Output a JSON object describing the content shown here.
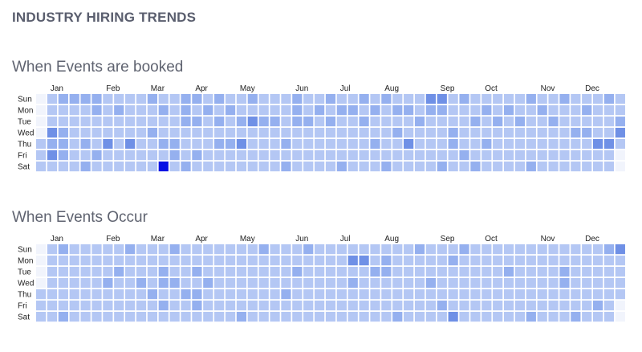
{
  "page": {
    "title": "INDUSTRY HIRING TRENDS"
  },
  "colors": {
    "empty": "#f1f4fc",
    "l0": "#b4c7f4",
    "l1": "#95b0ef",
    "l2": "#6f90e6",
    "max": "#0712e4"
  },
  "chart_data": [
    {
      "type": "heatmap",
      "title": "When Events are booked",
      "months": [
        "Jan",
        "Feb",
        "Mar",
        "Apr",
        "May",
        "Jun",
        "Jul",
        "Aug",
        "Sep",
        "Oct",
        "Nov",
        "Dec"
      ],
      "month_start_week": [
        1,
        6,
        10,
        14,
        18,
        23,
        27,
        31,
        36,
        40,
        45,
        49
      ],
      "days": [
        "Sun",
        "Mon",
        "Tue",
        "Wed",
        "Thu",
        "Fri",
        "Sat"
      ],
      "weeks": 53,
      "empty_cells": [
        [
          0,
          0
        ],
        [
          0,
          1
        ],
        [
          0,
          2
        ],
        [
          0,
          3
        ],
        [
          52,
          5
        ],
        [
          52,
          6
        ]
      ],
      "levels": [
        [
          1,
          3,
          1
        ],
        [
          1,
          4,
          1
        ],
        [
          2,
          0,
          1
        ],
        [
          2,
          3,
          1
        ],
        [
          2,
          4,
          1
        ],
        [
          2,
          5,
          1
        ],
        [
          3,
          0,
          1
        ],
        [
          4,
          0,
          1
        ],
        [
          4,
          4,
          1
        ],
        [
          4,
          6,
          1
        ],
        [
          5,
          0,
          1
        ],
        [
          5,
          1,
          1
        ],
        [
          5,
          5,
          1
        ],
        [
          6,
          4,
          1
        ],
        [
          7,
          1,
          1
        ],
        [
          8,
          4,
          1
        ],
        [
          10,
          0,
          1
        ],
        [
          10,
          3,
          1
        ],
        [
          11,
          1,
          1
        ],
        [
          11,
          4,
          1
        ],
        [
          12,
          4,
          1
        ],
        [
          12,
          5,
          1
        ],
        [
          13,
          0,
          1
        ],
        [
          13,
          1,
          1
        ],
        [
          13,
          2,
          1
        ],
        [
          13,
          6,
          1
        ],
        [
          14,
          0,
          1
        ],
        [
          14,
          2,
          1
        ],
        [
          14,
          5,
          1
        ],
        [
          15,
          1,
          1
        ],
        [
          16,
          0,
          1
        ],
        [
          16,
          2,
          1
        ],
        [
          16,
          4,
          1
        ],
        [
          17,
          1,
          1
        ],
        [
          17,
          4,
          1
        ],
        [
          18,
          2,
          1
        ],
        [
          19,
          0,
          1
        ],
        [
          20,
          2,
          1
        ],
        [
          21,
          2,
          1
        ],
        [
          22,
          4,
          1
        ],
        [
          22,
          6,
          1
        ],
        [
          23,
          0,
          1
        ],
        [
          23,
          1,
          1
        ],
        [
          23,
          2,
          1
        ],
        [
          24,
          2,
          1
        ],
        [
          25,
          1,
          1
        ],
        [
          26,
          0,
          1
        ],
        [
          26,
          2,
          1
        ],
        [
          27,
          1,
          1
        ],
        [
          27,
          6,
          1
        ],
        [
          28,
          1,
          1
        ],
        [
          29,
          0,
          1
        ],
        [
          29,
          2,
          1
        ],
        [
          30,
          1,
          1
        ],
        [
          30,
          4,
          1
        ],
        [
          31,
          0,
          1
        ],
        [
          31,
          6,
          1
        ],
        [
          32,
          1,
          1
        ],
        [
          32,
          3,
          1
        ],
        [
          33,
          1,
          1
        ],
        [
          34,
          2,
          1
        ],
        [
          35,
          0,
          1
        ],
        [
          35,
          1,
          1
        ],
        [
          36,
          1,
          1
        ],
        [
          36,
          6,
          1
        ],
        [
          37,
          3,
          1
        ],
        [
          37,
          4,
          1
        ],
        [
          38,
          0,
          1
        ],
        [
          38,
          5,
          1
        ],
        [
          39,
          2,
          1
        ],
        [
          39,
          6,
          1
        ],
        [
          40,
          1,
          1
        ],
        [
          40,
          4,
          1
        ],
        [
          41,
          2,
          1
        ],
        [
          42,
          1,
          1
        ],
        [
          43,
          2,
          1
        ],
        [
          44,
          0,
          1
        ],
        [
          44,
          6,
          1
        ],
        [
          45,
          1,
          1
        ],
        [
          46,
          2,
          1
        ],
        [
          47,
          0,
          1
        ],
        [
          48,
          3,
          1
        ],
        [
          49,
          1,
          1
        ],
        [
          49,
          3,
          1
        ],
        [
          50,
          4,
          1
        ],
        [
          51,
          0,
          1
        ],
        [
          52,
          2,
          1
        ],
        [
          52,
          3,
          1
        ],
        [
          1,
          3,
          2
        ],
        [
          1,
          5,
          2
        ],
        [
          6,
          4,
          2
        ],
        [
          8,
          4,
          2
        ],
        [
          18,
          4,
          2
        ],
        [
          19,
          2,
          2
        ],
        [
          33,
          4,
          2
        ],
        [
          35,
          0,
          2
        ],
        [
          36,
          0,
          2
        ],
        [
          50,
          4,
          2
        ],
        [
          51,
          4,
          2
        ],
        [
          52,
          3,
          2
        ],
        [
          11,
          6,
          3
        ]
      ]
    },
    {
      "type": "heatmap",
      "title": "When Events Occur",
      "months": [
        "Jan",
        "Feb",
        "Mar",
        "Apr",
        "May",
        "Jun",
        "Jul",
        "Aug",
        "Sep",
        "Oct",
        "Nov",
        "Dec"
      ],
      "month_start_week": [
        1,
        6,
        10,
        14,
        18,
        23,
        27,
        31,
        36,
        40,
        45,
        49
      ],
      "days": [
        "Sun",
        "Mon",
        "Tue",
        "Wed",
        "Thu",
        "Fri",
        "Sat"
      ],
      "weeks": 53,
      "empty_cells": [
        [
          0,
          0
        ],
        [
          0,
          1
        ],
        [
          0,
          2
        ],
        [
          0,
          3
        ],
        [
          52,
          5
        ],
        [
          52,
          6
        ]
      ],
      "levels": [
        [
          2,
          0,
          1
        ],
        [
          2,
          6,
          1
        ],
        [
          6,
          3,
          1
        ],
        [
          7,
          2,
          1
        ],
        [
          8,
          0,
          1
        ],
        [
          9,
          3,
          1
        ],
        [
          10,
          4,
          1
        ],
        [
          11,
          2,
          1
        ],
        [
          11,
          3,
          1
        ],
        [
          11,
          5,
          1
        ],
        [
          12,
          0,
          1
        ],
        [
          12,
          3,
          1
        ],
        [
          13,
          4,
          1
        ],
        [
          14,
          2,
          1
        ],
        [
          14,
          4,
          1
        ],
        [
          14,
          5,
          1
        ],
        [
          15,
          3,
          1
        ],
        [
          18,
          6,
          1
        ],
        [
          20,
          0,
          1
        ],
        [
          22,
          4,
          1
        ],
        [
          23,
          2,
          1
        ],
        [
          24,
          0,
          1
        ],
        [
          28,
          3,
          1
        ],
        [
          30,
          2,
          1
        ],
        [
          31,
          1,
          1
        ],
        [
          31,
          2,
          1
        ],
        [
          32,
          6,
          1
        ],
        [
          34,
          0,
          1
        ],
        [
          35,
          3,
          1
        ],
        [
          36,
          5,
          1
        ],
        [
          37,
          1,
          1
        ],
        [
          38,
          0,
          1
        ],
        [
          42,
          2,
          1
        ],
        [
          44,
          6,
          1
        ],
        [
          47,
          2,
          1
        ],
        [
          47,
          3,
          1
        ],
        [
          48,
          6,
          1
        ],
        [
          50,
          5,
          1
        ],
        [
          51,
          0,
          1
        ],
        [
          28,
          1,
          2
        ],
        [
          29,
          1,
          2
        ],
        [
          37,
          6,
          2
        ],
        [
          52,
          0,
          2
        ]
      ]
    }
  ]
}
